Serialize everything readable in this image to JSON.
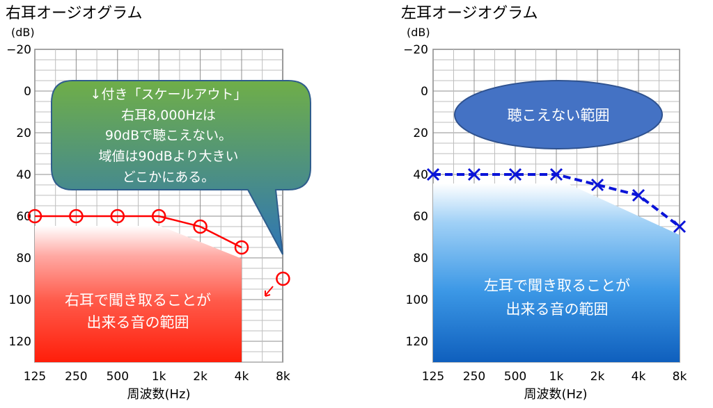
{
  "chart_data": [
    {
      "type": "line",
      "title": "右耳オージオグラム",
      "ylabel": "(dB)",
      "xlabel": "周波数(Hz)",
      "categories": [
        "125",
        "250",
        "500",
        "1k",
        "2k",
        "4k",
        "8k"
      ],
      "yticks": [
        "−20",
        "0",
        "20",
        "40",
        "60",
        "80",
        "100",
        "120"
      ],
      "ylim": [
        -20,
        130
      ],
      "y_inverted": true,
      "grid": true,
      "series": [
        {
          "marker": "circle",
          "color": "#ff0000",
          "line": "solid",
          "values": [
            60,
            60,
            60,
            60,
            65,
            75,
            null
          ]
        },
        {
          "marker": "circle",
          "color": "#ff0000",
          "line": "none",
          "values": [
            null,
            null,
            null,
            null,
            null,
            null,
            90
          ],
          "arrow": "scale-out"
        }
      ],
      "hearing_region": {
        "label_line1": "右耳で聞き取ることが",
        "label_line2": "出来る音の範囲",
        "color": "#ff2a1a"
      },
      "callout": {
        "line1": "↓付き「スケールアウト」",
        "line2": "右耳8,000Hzは",
        "line3": "90dBで聴こえない。",
        "line4": "域値は90dBより大きい",
        "line5": "どこかにある。",
        "color_top": "#6fae48",
        "color_bottom": "#2e75b6"
      }
    },
    {
      "type": "line",
      "title": "左耳オージオグラム",
      "ylabel": "(dB)",
      "xlabel": "周波数(Hz)",
      "categories": [
        "125",
        "250",
        "500",
        "1k",
        "2k",
        "4k",
        "8k"
      ],
      "yticks": [
        "−20",
        "0",
        "20",
        "40",
        "60",
        "80",
        "100",
        "120"
      ],
      "ylim": [
        -20,
        130
      ],
      "y_inverted": true,
      "grid": true,
      "series": [
        {
          "marker": "x",
          "color": "#0a14d8",
          "line": "dashed",
          "values": [
            40,
            40,
            40,
            40,
            45,
            50,
            65
          ]
        }
      ],
      "hearing_region": {
        "label_line1": "左耳で聞き取ることが",
        "label_line2": "出来る音の範囲",
        "color": "#1a7ad8"
      },
      "cannot_hear": {
        "label": "聴こえない範囲",
        "color": "#4472c4"
      }
    }
  ]
}
